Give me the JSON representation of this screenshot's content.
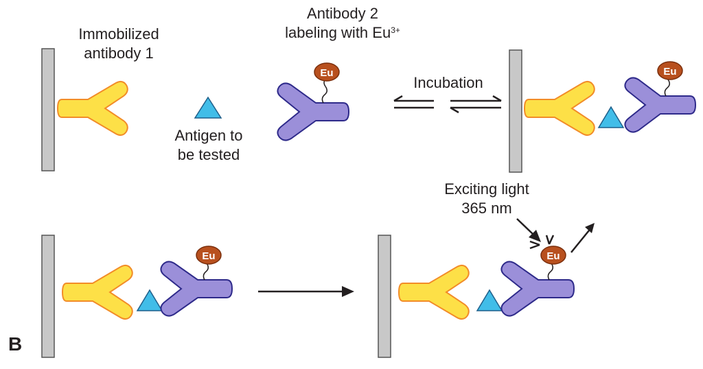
{
  "panel_letter": "B",
  "labels": {
    "antibody1": [
      "Immobilized",
      "antibody 1"
    ],
    "antibody2_line1": "Antibody 2",
    "antibody2_line2": "labeling with Eu",
    "antibody2_sup": "3+",
    "antigen": [
      "Antigen to",
      "be tested"
    ],
    "incubation": "Incubation",
    "exciting": [
      "Exciting light",
      "365 nm"
    ],
    "eu_tag": "Eu"
  },
  "colors": {
    "plate_fill": "#c8c8c8",
    "plate_stroke": "#555555",
    "antibody1_fill": "#fde047",
    "antibody1_stroke": "#f28c28",
    "antibody2_fill": "#9b8fd9",
    "antibody2_stroke": "#2e2a8a",
    "antigen_fill": "#41bde8",
    "antigen_stroke": "#1f5f8a",
    "eu_fill": "#b8501e",
    "eu_stroke": "#7a2e0c",
    "arrow": "#231f20"
  }
}
